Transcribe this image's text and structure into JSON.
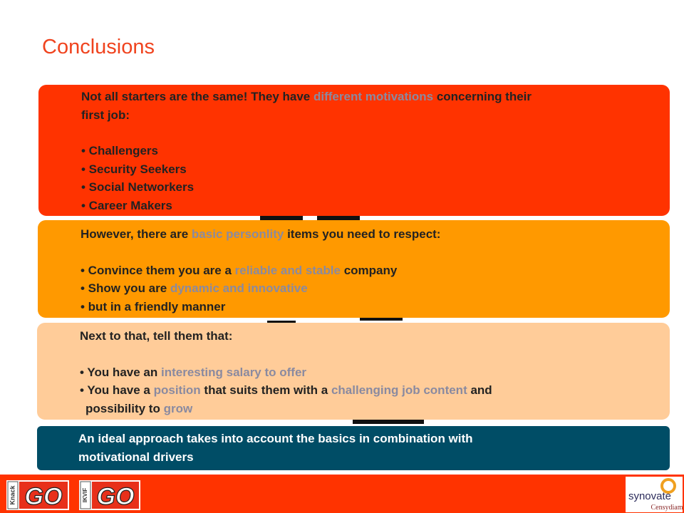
{
  "title": "Conclusions",
  "box1": {
    "intro_a": "Not all starters are the same! They have ",
    "intro_hl": "different motivations",
    "intro_b": " concerning their",
    "intro_line2": "first job:",
    "bullets": [
      "• Challengers",
      "• Security Seekers",
      "• Social Networkers",
      "• Career Makers"
    ]
  },
  "box2": {
    "intro_a": "However, there are ",
    "intro_hl": "basic personlity",
    "intro_b": " items you need to respect:",
    "b1_a": "• Convince them you are a ",
    "b1_hl": "reliable and stable",
    "b1_b": " company",
    "b2_a": "• Show you are ",
    "b2_hl": "dynamic and innovative",
    "b3": "• but in a friendly manner"
  },
  "box3": {
    "intro": "Next to that, tell them that:",
    "b1_a": "• You have an ",
    "b1_hl": "interesting salary to offer",
    "b2_a": "• You have a ",
    "b2_hl": "position",
    "b2_b": " that suits them with a ",
    "b2_hl2": "challenging job content",
    "b2_c": " and",
    "b2_line2": "possibility to ",
    "b2_hl3": "grow"
  },
  "box4": {
    "line1": "An ideal approach takes into account the basics in combination with",
    "line2": "motivational drivers"
  },
  "footer": {
    "logo_knack_side": "Knack",
    "logo_knack_text": "GO",
    "logo_ikvif_side": "IKVIF",
    "logo_ikvif_text": "GO",
    "logo_synovate": "synovate",
    "logo_censydiam": "Censydiam"
  },
  "colors": {
    "title": "#f0431e",
    "box1": "#ff3300",
    "box2": "#ff9900",
    "box3": "#ffcc99",
    "box4": "#004d66",
    "highlight": "#8a8aa0",
    "footer": "#ff3300"
  }
}
